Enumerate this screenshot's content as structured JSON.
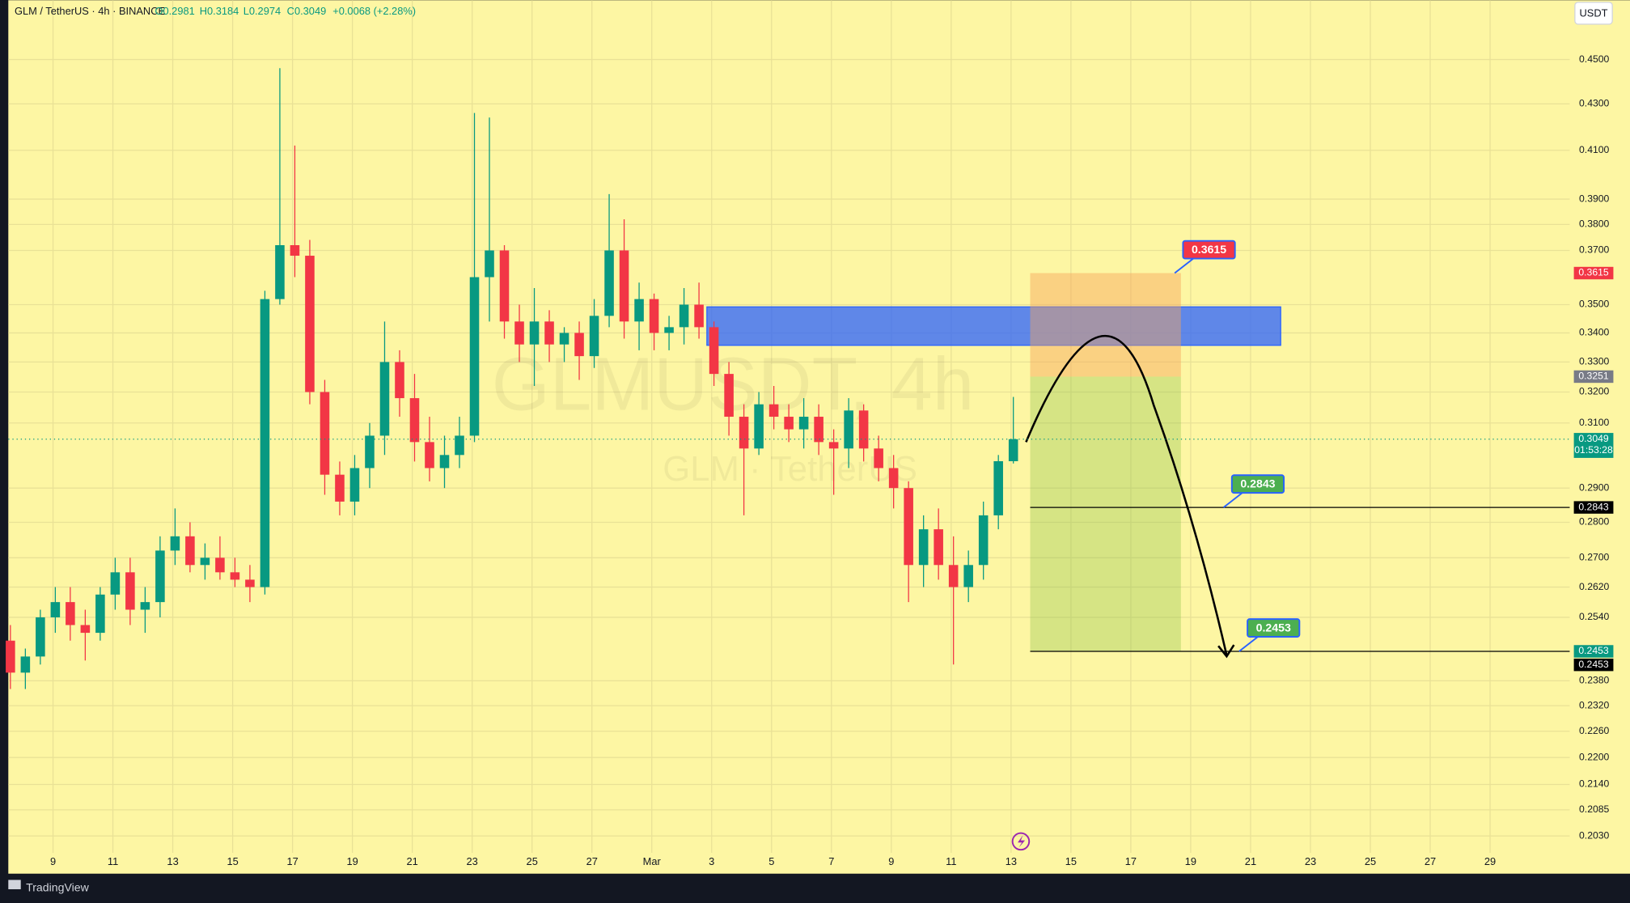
{
  "chart_data": {
    "type": "candlestick",
    "header": {
      "symbol": "GLM / TetherUS · 4h · BINANCE",
      "open": "O0.2981",
      "high": "H0.3184",
      "low": "L0.2974",
      "close": "C0.3049",
      "change": "+0.0068 (+2.28%)"
    },
    "watermark": {
      "symbol": "GLMUSDT, 4h",
      "name": "GLM · TetherUS"
    },
    "currency": "USDT",
    "brand": "TradingView",
    "log_scale": true,
    "grid": true,
    "up_color": "#089981",
    "down_color": "#f23645",
    "ylim": [
      0.1953,
      0.4782
    ],
    "yticks": [
      {
        "value": 0.45,
        "label": "0.4500"
      },
      {
        "value": 0.43,
        "label": "0.4300"
      },
      {
        "value": 0.41,
        "label": "0.4100"
      },
      {
        "value": 0.39,
        "label": "0.3900"
      },
      {
        "value": 0.38,
        "label": "0.3800"
      },
      {
        "value": 0.37,
        "label": "0.3700"
      },
      {
        "value": 0.35,
        "label": "0.3500"
      },
      {
        "value": 0.34,
        "label": "0.3400"
      },
      {
        "value": 0.33,
        "label": "0.3300"
      },
      {
        "value": 0.32,
        "label": "0.3200"
      },
      {
        "value": 0.31,
        "label": "0.3100"
      },
      {
        "value": 0.29,
        "label": "0.2900"
      },
      {
        "value": 0.28,
        "label": "0.2800"
      },
      {
        "value": 0.27,
        "label": "0.2700"
      },
      {
        "value": 0.262,
        "label": "0.2620"
      },
      {
        "value": 0.254,
        "label": "0.2540"
      },
      {
        "value": 0.238,
        "label": "0.2380"
      },
      {
        "value": 0.232,
        "label": "0.2320"
      },
      {
        "value": 0.226,
        "label": "0.2260"
      },
      {
        "value": 0.22,
        "label": "0.2200"
      },
      {
        "value": 0.214,
        "label": "0.2140"
      },
      {
        "value": 0.2085,
        "label": "0.2085"
      },
      {
        "value": 0.203,
        "label": "0.2030"
      }
    ],
    "x_labels": [
      "9",
      "11",
      "13",
      "15",
      "17",
      "19",
      "21",
      "23",
      "25",
      "27",
      "Mar",
      "3",
      "5",
      "7",
      "9",
      "11",
      "13",
      "15",
      "17",
      "19",
      "21",
      "23",
      "25",
      "27",
      "29"
    ],
    "open": [
      0.248,
      0.24,
      0.244,
      0.254,
      0.258,
      0.252,
      0.25,
      0.26,
      0.266,
      0.256,
      0.258,
      0.272,
      0.276,
      0.268,
      0.27,
      0.266,
      0.264,
      0.262,
      0.352,
      0.372,
      0.368,
      0.32,
      0.294,
      0.286,
      0.296,
      0.306,
      0.33,
      0.318,
      0.304,
      0.296,
      0.3,
      0.306,
      0.36,
      0.37,
      0.344,
      0.336,
      0.344,
      0.336,
      0.34,
      0.332,
      0.346,
      0.37,
      0.344,
      0.352,
      0.34,
      0.342,
      0.35,
      0.342,
      0.326,
      0.312,
      0.302,
      0.316,
      0.312,
      0.308,
      0.312,
      0.304,
      0.302,
      0.314,
      0.302,
      0.296,
      0.29,
      0.268,
      0.278,
      0.268,
      0.262,
      0.268,
      0.282,
      0.2981
    ],
    "high": [
      0.252,
      0.246,
      0.256,
      0.262,
      0.262,
      0.256,
      0.262,
      0.27,
      0.27,
      0.262,
      0.276,
      0.284,
      0.28,
      0.274,
      0.276,
      0.27,
      0.268,
      0.355,
      0.446,
      0.412,
      0.374,
      0.324,
      0.298,
      0.3,
      0.31,
      0.344,
      0.334,
      0.326,
      0.312,
      0.306,
      0.312,
      0.426,
      0.424,
      0.372,
      0.35,
      0.356,
      0.348,
      0.342,
      0.344,
      0.352,
      0.392,
      0.382,
      0.358,
      0.354,
      0.346,
      0.356,
      0.358,
      0.344,
      0.33,
      0.316,
      0.32,
      0.322,
      0.316,
      0.318,
      0.316,
      0.308,
      0.318,
      0.316,
      0.306,
      0.3,
      0.292,
      0.282,
      0.284,
      0.276,
      0.272,
      0.286,
      0.3,
      0.3184
    ],
    "low": [
      0.236,
      0.236,
      0.242,
      0.25,
      0.248,
      0.243,
      0.248,
      0.256,
      0.252,
      0.25,
      0.254,
      0.268,
      0.266,
      0.264,
      0.264,
      0.262,
      0.258,
      0.26,
      0.35,
      0.36,
      0.316,
      0.288,
      0.282,
      0.282,
      0.29,
      0.3,
      0.312,
      0.298,
      0.292,
      0.29,
      0.296,
      0.304,
      0.344,
      0.338,
      0.33,
      0.322,
      0.33,
      0.33,
      0.324,
      0.328,
      0.342,
      0.338,
      0.334,
      0.334,
      0.334,
      0.336,
      0.338,
      0.322,
      0.306,
      0.282,
      0.3,
      0.308,
      0.304,
      0.302,
      0.3,
      0.288,
      0.296,
      0.298,
      0.292,
      0.284,
      0.258,
      0.262,
      0.264,
      0.242,
      0.258,
      0.264,
      0.278,
      0.2974
    ],
    "close": [
      0.24,
      0.244,
      0.254,
      0.258,
      0.252,
      0.25,
      0.26,
      0.266,
      0.256,
      0.258,
      0.272,
      0.276,
      0.268,
      0.27,
      0.266,
      0.264,
      0.262,
      0.352,
      0.372,
      0.368,
      0.32,
      0.294,
      0.286,
      0.296,
      0.306,
      0.33,
      0.318,
      0.304,
      0.296,
      0.3,
      0.306,
      0.36,
      0.37,
      0.344,
      0.336,
      0.344,
      0.336,
      0.34,
      0.332,
      0.346,
      0.37,
      0.344,
      0.352,
      0.34,
      0.342,
      0.35,
      0.342,
      0.326,
      0.312,
      0.302,
      0.316,
      0.312,
      0.308,
      0.312,
      0.304,
      0.302,
      0.314,
      0.302,
      0.296,
      0.29,
      0.268,
      0.278,
      0.268,
      0.262,
      0.268,
      0.282,
      0.2981,
      0.3049
    ],
    "zone": {
      "top": 0.3492,
      "bottom": 0.3357,
      "color": "#2962ff"
    },
    "position": {
      "stop": 0.3615,
      "entry": 0.3251,
      "target": 0.2453
    },
    "levels": [
      0.2843,
      0.2453
    ],
    "price_labels": [
      {
        "value": 0.3615,
        "color": "#f23645"
      },
      {
        "value": 0.3251,
        "color": "#787b86"
      },
      {
        "value": 0.3049,
        "color": "#089981",
        "countdown": "01:53:28"
      },
      {
        "value": 0.2843,
        "color": "#000000"
      },
      {
        "value": 0.2453,
        "color": "#089981"
      },
      {
        "value": 0.2453,
        "color": "#000000"
      }
    ],
    "callouts": [
      {
        "value": 0.3615,
        "color": "#f23645"
      },
      {
        "value": 0.2843,
        "color": "#4caf50"
      },
      {
        "value": 0.2453,
        "color": "#4caf50"
      }
    ]
  }
}
